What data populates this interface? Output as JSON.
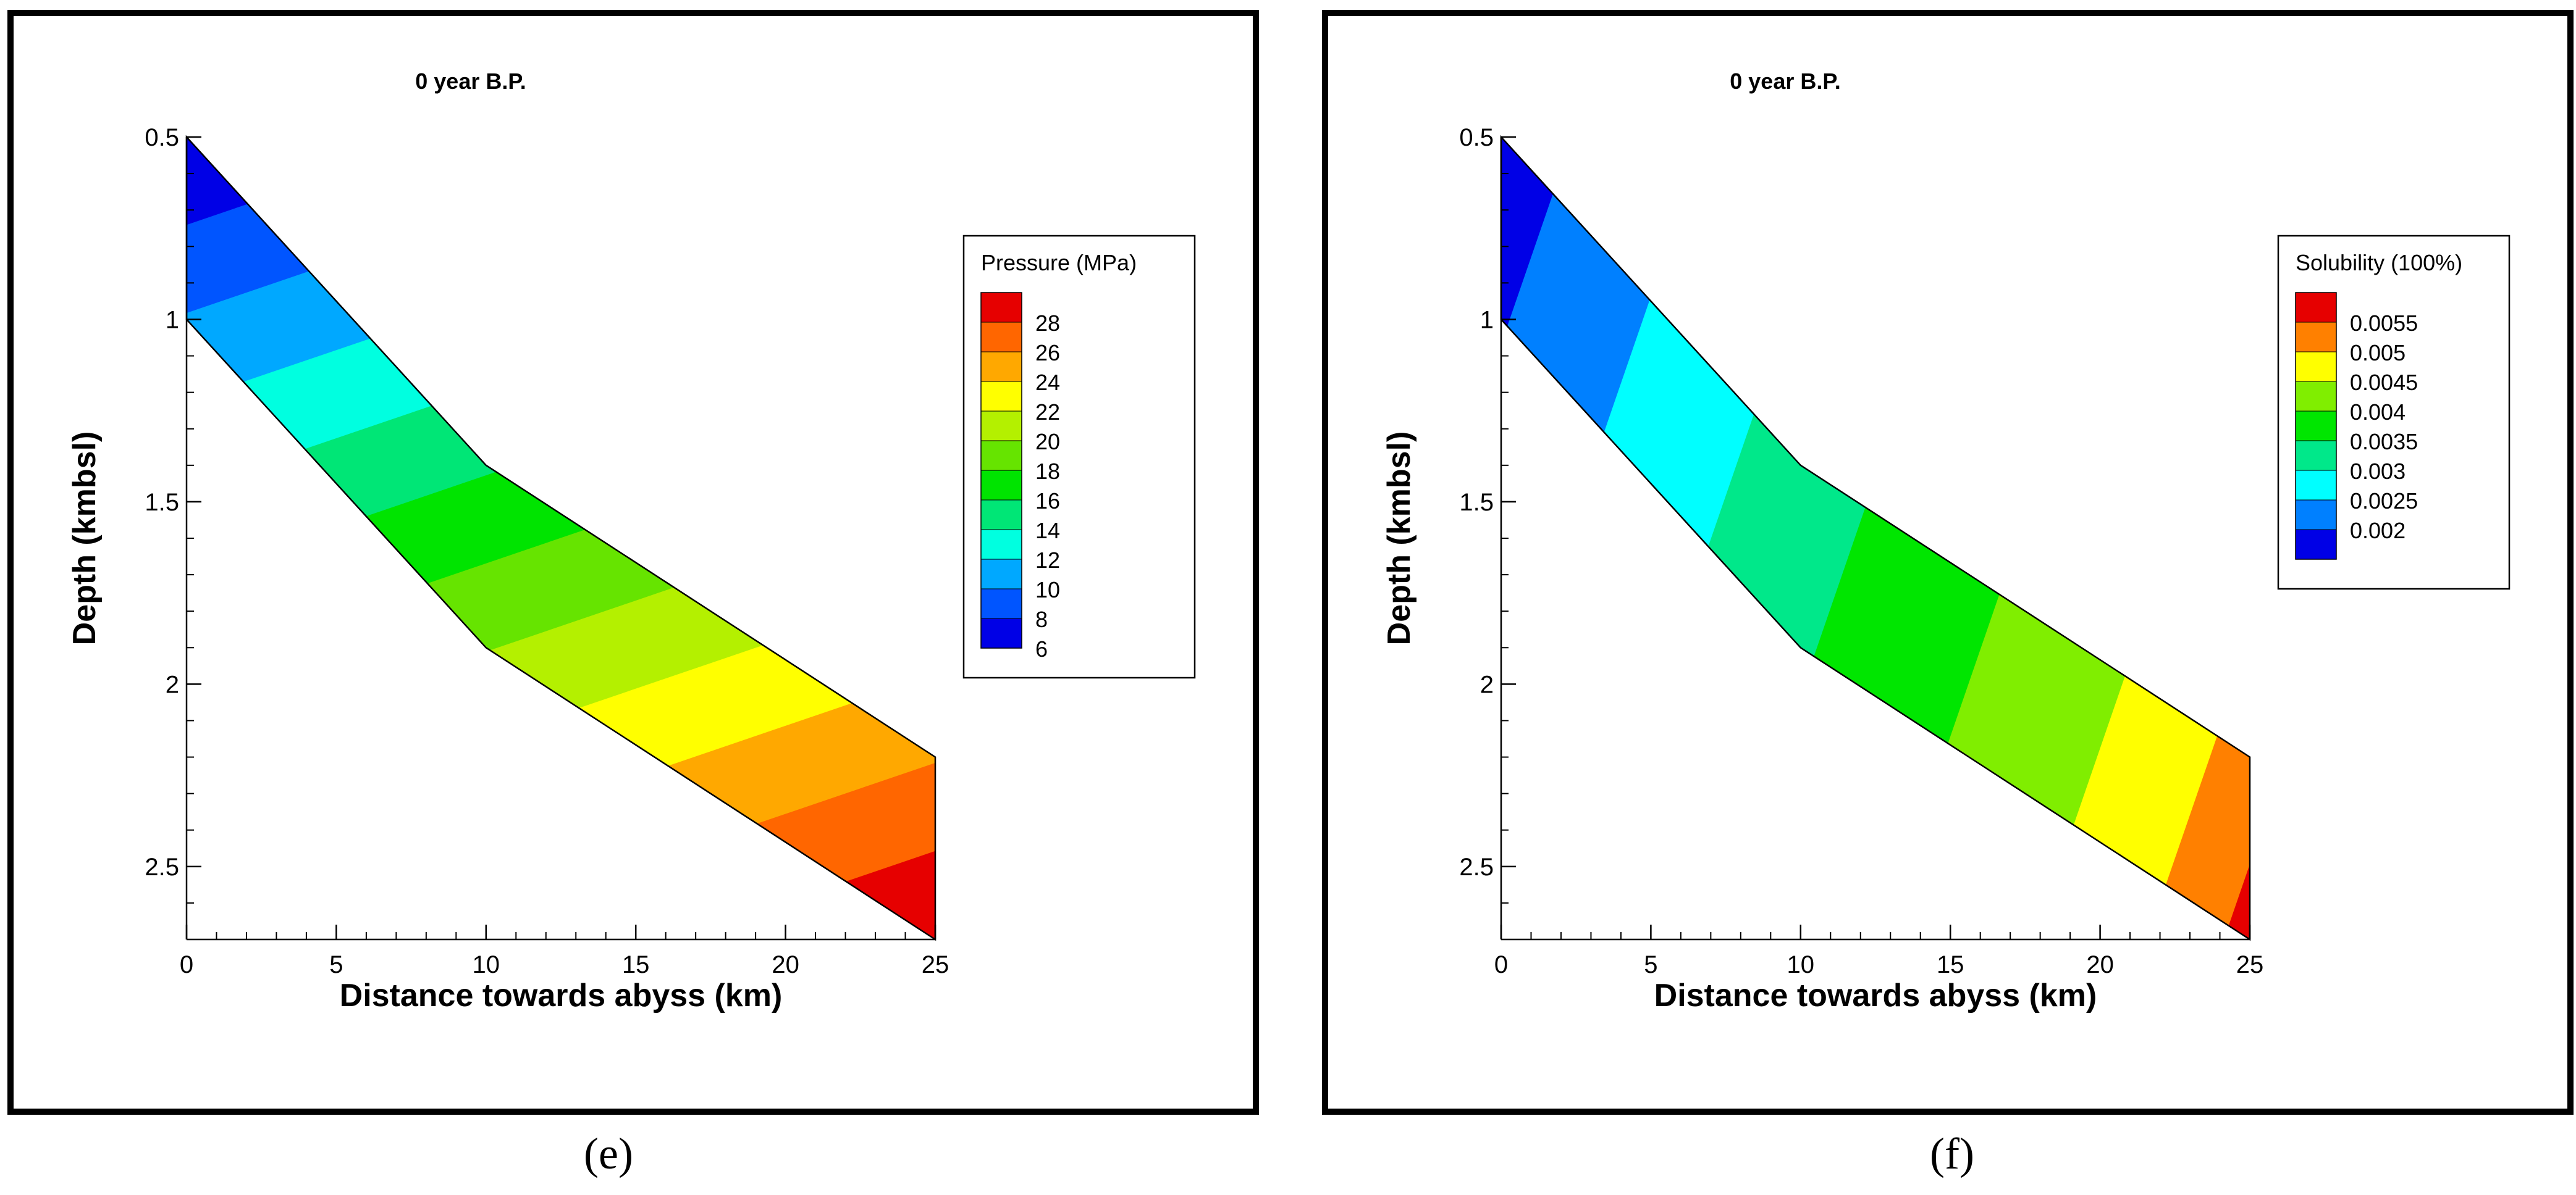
{
  "figure": {
    "captions": [
      "(e)",
      "(f)"
    ]
  },
  "chart_data": [
    {
      "type": "contour",
      "panel_label": "(e)",
      "title": "0 year B.P.",
      "xlabel": "Distance towards abyss (km)",
      "ylabel": "Depth (kmbsl)",
      "xlim": [
        0,
        25
      ],
      "ylim": [
        2.7,
        0.5
      ],
      "y_inverted": true,
      "x_ticks": [
        0,
        5,
        10,
        15,
        20,
        25
      ],
      "y_ticks": [
        0.5,
        1,
        1.5,
        2,
        2.5
      ],
      "y_tick_labels": [
        "0.5",
        "1",
        "1.5",
        "2",
        "2.5"
      ],
      "domain": {
        "top_boundary": [
          [
            0,
            0.5
          ],
          [
            10,
            1.4
          ],
          [
            25,
            2.2
          ]
        ],
        "bottom_boundary": [
          [
            0,
            1.0
          ],
          [
            10,
            1.9
          ],
          [
            25,
            2.7
          ]
        ]
      },
      "legend": {
        "title": "Pressure (MPa)",
        "position": "right",
        "levels": [
          28,
          26,
          24,
          22,
          20,
          18,
          16,
          14,
          12,
          10,
          8,
          6
        ],
        "level_labels": [
          "28",
          "26",
          "24",
          "22",
          "20",
          "18",
          "16",
          "14",
          "12",
          "10",
          "8",
          "6"
        ],
        "colors": [
          "#e60000",
          "#ff6600",
          "#ffa800",
          "#ffff00",
          "#b4f000",
          "#66e400",
          "#00e400",
          "#00e676",
          "#00ffe0",
          "#00a8ff",
          "#0055ff",
          "#0000e6"
        ]
      }
    },
    {
      "type": "contour",
      "panel_label": "(f)",
      "title": "0 year B.P.",
      "xlabel": "Distance towards abyss (km)",
      "ylabel": "Depth (kmbsl)",
      "xlim": [
        0,
        25
      ],
      "ylim": [
        2.7,
        0.5
      ],
      "y_inverted": true,
      "x_ticks": [
        0,
        5,
        10,
        15,
        20,
        25
      ],
      "y_ticks": [
        0.5,
        1,
        1.5,
        2,
        2.5
      ],
      "y_tick_labels": [
        "0.5",
        "1",
        "1.5",
        "2",
        "2.5"
      ],
      "domain": {
        "top_boundary": [
          [
            0,
            0.5
          ],
          [
            10,
            1.4
          ],
          [
            25,
            2.2
          ]
        ],
        "bottom_boundary": [
          [
            0,
            1.0
          ],
          [
            10,
            1.9
          ],
          [
            25,
            2.7
          ]
        ]
      },
      "legend": {
        "title": "Solubility (100%)",
        "position": "right",
        "levels": [
          0.0055,
          0.005,
          0.0045,
          0.004,
          0.0035,
          0.003,
          0.0025,
          0.002
        ],
        "level_labels": [
          "0.0055",
          "0.005",
          "0.0045",
          "0.004",
          "0.0035",
          "0.003",
          "0.0025",
          "0.002"
        ],
        "colors": [
          "#e60000",
          "#ff8000",
          "#ffff00",
          "#80ee00",
          "#00e600",
          "#00e88a",
          "#00ffff",
          "#0080ff",
          "#0000e6"
        ]
      }
    }
  ]
}
